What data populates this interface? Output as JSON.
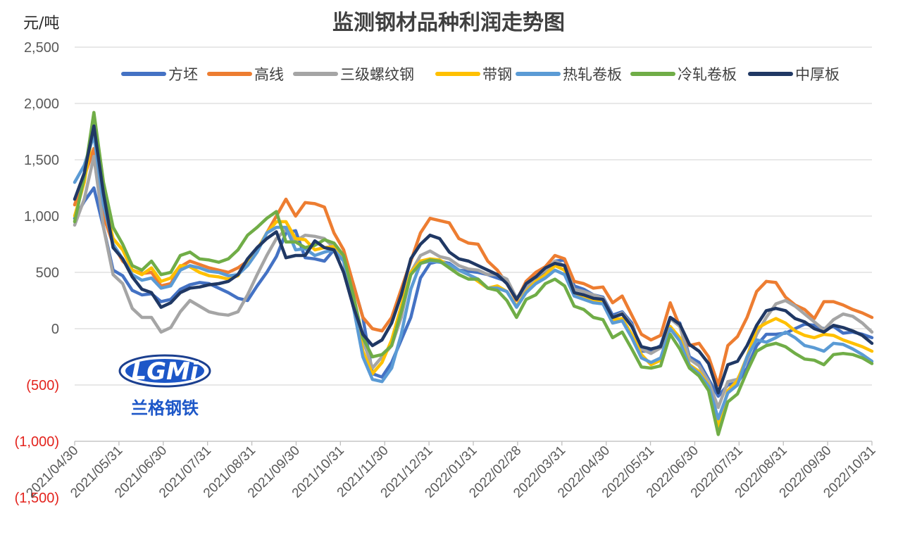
{
  "chart_data": {
    "type": "line",
    "title": "监测钢材品种利润走势图",
    "unit_label": "元/吨",
    "ylim": [
      -1500,
      2500
    ],
    "yticks": [
      {
        "value": 2500,
        "label": "2,500"
      },
      {
        "value": 2000,
        "label": "2,000"
      },
      {
        "value": 1500,
        "label": "1,500"
      },
      {
        "value": 1000,
        "label": "1,000"
      },
      {
        "value": 500,
        "label": "500"
      },
      {
        "value": 0,
        "label": "0"
      },
      {
        "value": -500,
        "label": "(500)"
      },
      {
        "value": -1000,
        "label": "(1,000)"
      },
      {
        "value": -1500,
        "label": "(1,500)"
      }
    ],
    "x_tick_labels": [
      "2021/04/30",
      "2021/05/31",
      "2021/06/30",
      "2021/07/31",
      "2021/08/31",
      "2021/09/30",
      "2021/10/31",
      "2021/11/30",
      "2021/12/31",
      "2022/01/31",
      "2022/02/28",
      "2022/03/31",
      "2022/04/30",
      "2022/05/31",
      "2022/06/30",
      "2022/07/31",
      "2022/08/31",
      "2022/09/30",
      "2022/10/31"
    ],
    "grid": "horizontal",
    "legend_position": "top",
    "colors": {
      "negative_tick": "#e3231d"
    },
    "series": [
      {
        "name": "方坯",
        "color": "#4472c4",
        "values": [
          980,
          1130,
          1250,
          900,
          520,
          470,
          340,
          300,
          310,
          240,
          260,
          350,
          390,
          410,
          400,
          360,
          320,
          270,
          250,
          380,
          500,
          640,
          850,
          870,
          630,
          620,
          600,
          700,
          650,
          400,
          100,
          -400,
          -430,
          -300,
          -100,
          100,
          450,
          580,
          600,
          580,
          520,
          510,
          500,
          480,
          450,
          420,
          260,
          370,
          450,
          500,
          600,
          610,
          380,
          350,
          300,
          280,
          120,
          150,
          50,
          -200,
          -200,
          -150,
          100,
          50,
          -250,
          -300,
          -450,
          -600,
          -500,
          -480,
          -350,
          -150,
          -50,
          -50,
          -40,
          0,
          40,
          30,
          0,
          20,
          -40,
          -30,
          -50,
          -80
        ]
      },
      {
        "name": "高线",
        "color": "#ed7d31",
        "values": [
          1100,
          1350,
          1600,
          1000,
          750,
          600,
          520,
          490,
          500,
          380,
          400,
          550,
          600,
          570,
          540,
          520,
          500,
          540,
          600,
          700,
          850,
          1000,
          1150,
          1000,
          1120,
          1110,
          1080,
          850,
          700,
          400,
          100,
          0,
          -20,
          100,
          350,
          600,
          850,
          980,
          960,
          940,
          800,
          760,
          750,
          600,
          520,
          400,
          250,
          420,
          500,
          550,
          650,
          620,
          420,
          400,
          360,
          370,
          230,
          290,
          120,
          -50,
          -100,
          -60,
          230,
          20,
          -150,
          -130,
          -250,
          -500,
          -150,
          -70,
          100,
          330,
          420,
          410,
          280,
          210,
          170,
          90,
          240,
          240,
          210,
          170,
          140,
          100
        ]
      },
      {
        "name": "三级螺纹钢",
        "color": "#a5a5a5",
        "values": [
          920,
          1150,
          1530,
          900,
          480,
          400,
          180,
          100,
          100,
          -30,
          10,
          150,
          250,
          200,
          150,
          130,
          120,
          150,
          300,
          480,
          650,
          800,
          880,
          780,
          830,
          820,
          800,
          720,
          600,
          200,
          -100,
          -350,
          -250,
          -150,
          100,
          500,
          650,
          690,
          640,
          620,
          560,
          530,
          520,
          480,
          480,
          440,
          270,
          370,
          460,
          520,
          600,
          560,
          350,
          330,
          300,
          270,
          100,
          140,
          30,
          -180,
          -220,
          -170,
          90,
          20,
          -270,
          -330,
          -470,
          -700,
          -470,
          -450,
          -280,
          -50,
          100,
          220,
          250,
          200,
          130,
          60,
          -10,
          80,
          130,
          110,
          50,
          -30
        ]
      },
      {
        "name": "带钢",
        "color": "#ffc000",
        "values": [
          1000,
          1300,
          1800,
          1150,
          800,
          700,
          520,
          480,
          540,
          420,
          450,
          560,
          550,
          500,
          470,
          460,
          440,
          470,
          600,
          700,
          850,
          950,
          950,
          800,
          790,
          700,
          720,
          730,
          650,
          300,
          -200,
          -400,
          -300,
          -100,
          200,
          500,
          600,
          620,
          610,
          560,
          520,
          480,
          420,
          360,
          380,
          330,
          200,
          330,
          420,
          480,
          560,
          520,
          300,
          270,
          250,
          230,
          80,
          90,
          -50,
          -230,
          -320,
          -280,
          20,
          -80,
          -320,
          -380,
          -500,
          -870,
          -550,
          -460,
          -250,
          0,
          50,
          90,
          50,
          -20,
          -60,
          -80,
          -50,
          -60,
          -100,
          -130,
          -160,
          -200
        ]
      },
      {
        "name": "热轧卷板",
        "color": "#5b9bd5",
        "values": [
          1300,
          1450,
          1720,
          1100,
          750,
          620,
          480,
          430,
          450,
          360,
          380,
          520,
          560,
          540,
          510,
          500,
          470,
          480,
          560,
          680,
          850,
          900,
          900,
          700,
          710,
          650,
          680,
          700,
          600,
          200,
          -250,
          -450,
          -470,
          -350,
          -50,
          350,
          580,
          600,
          590,
          570,
          520,
          480,
          440,
          360,
          360,
          330,
          190,
          320,
          400,
          450,
          520,
          480,
          290,
          260,
          230,
          220,
          50,
          70,
          -80,
          -260,
          -300,
          -260,
          0,
          -110,
          -330,
          -400,
          -510,
          -800,
          -570,
          -500,
          -250,
          -100,
          -120,
          -80,
          -30,
          -80,
          -150,
          -170,
          -200,
          -130,
          -140,
          -180,
          -230,
          -290
        ]
      },
      {
        "name": "冷轧卷板",
        "color": "#70ad47",
        "values": [
          950,
          1350,
          1920,
          1300,
          900,
          750,
          560,
          520,
          600,
          480,
          500,
          650,
          680,
          620,
          610,
          590,
          620,
          700,
          830,
          900,
          980,
          1040,
          770,
          770,
          720,
          740,
          790,
          760,
          650,
          300,
          -80,
          -250,
          -230,
          -150,
          150,
          480,
          580,
          610,
          600,
          540,
          480,
          440,
          440,
          360,
          340,
          250,
          100,
          260,
          300,
          400,
          440,
          380,
          200,
          170,
          100,
          80,
          -80,
          -30,
          -180,
          -340,
          -350,
          -330,
          -50,
          -180,
          -350,
          -420,
          -550,
          -940,
          -650,
          -580,
          -380,
          -200,
          -150,
          -130,
          -160,
          -220,
          -270,
          -280,
          -320,
          -230,
          -220,
          -230,
          -260,
          -310
        ]
      },
      {
        "name": "中厚板",
        "color": "#203864",
        "values": [
          1150,
          1380,
          1800,
          1200,
          720,
          620,
          460,
          350,
          320,
          190,
          230,
          320,
          360,
          370,
          390,
          400,
          420,
          480,
          620,
          720,
          800,
          860,
          630,
          650,
          650,
          780,
          720,
          700,
          500,
          200,
          -50,
          -150,
          -100,
          50,
          300,
          620,
          750,
          830,
          800,
          680,
          620,
          600,
          560,
          520,
          480,
          400,
          260,
          400,
          460,
          540,
          580,
          560,
          320,
          300,
          270,
          260,
          100,
          130,
          20,
          -160,
          -180,
          -160,
          100,
          40,
          -140,
          -200,
          -310,
          -570,
          -320,
          -290,
          -150,
          30,
          160,
          180,
          160,
          90,
          60,
          0,
          -30,
          30,
          10,
          -20,
          -60,
          -130
        ]
      }
    ]
  }
}
